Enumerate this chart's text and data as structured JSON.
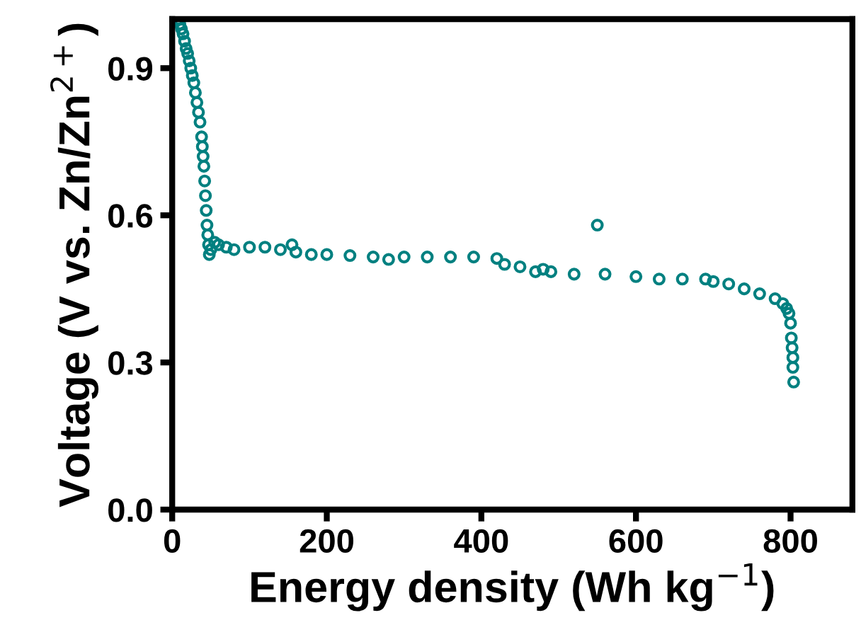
{
  "chart_data": {
    "type": "scatter",
    "xlabel": "Energy density (Wh kg$^{−1}$)",
    "ylabel": "Voltage (V vs. Zn/Zn$^{2+}$)",
    "xlim": [
      0,
      880
    ],
    "ylim": [
      0,
      1.0
    ],
    "xticks": [
      0,
      200,
      400,
      600,
      800
    ],
    "yticks": [
      {
        "value": 0,
        "label": "0.0"
      },
      0.3,
      0.6,
      0.9
    ],
    "grid": false,
    "marker": "circle",
    "series": [
      {
        "color": "#008080",
        "x": [
          8,
          10,
          12,
          14,
          16,
          18,
          20,
          22,
          24,
          26,
          28,
          30,
          32,
          34,
          36,
          38,
          39,
          40,
          41,
          42,
          43,
          44,
          45,
          46,
          47,
          48,
          50,
          55,
          60,
          70,
          80,
          100,
          120,
          140,
          155,
          160,
          180,
          200,
          230,
          260,
          280,
          300,
          330,
          360,
          390,
          420,
          430,
          450,
          470,
          480,
          490,
          520,
          550,
          560,
          600,
          630,
          660,
          690,
          700,
          720,
          740,
          760,
          780,
          790,
          795,
          798,
          800,
          801,
          802,
          803,
          803,
          804
        ],
        "values": [
          1.0,
          0.99,
          0.98,
          0.97,
          0.955,
          0.94,
          0.93,
          0.915,
          0.9,
          0.885,
          0.87,
          0.85,
          0.83,
          0.81,
          0.79,
          0.76,
          0.74,
          0.72,
          0.7,
          0.67,
          0.64,
          0.61,
          0.58,
          0.56,
          0.54,
          0.52,
          0.53,
          0.545,
          0.54,
          0.535,
          0.53,
          0.535,
          0.535,
          0.53,
          0.54,
          0.525,
          0.52,
          0.52,
          0.518,
          0.515,
          0.51,
          0.515,
          0.515,
          0.515,
          0.515,
          0.512,
          0.5,
          0.495,
          0.485,
          0.49,
          0.485,
          0.48,
          0.58,
          0.48,
          0.475,
          0.47,
          0.47,
          0.47,
          0.465,
          0.46,
          0.45,
          0.44,
          0.43,
          0.42,
          0.41,
          0.4,
          0.38,
          0.35,
          0.33,
          0.31,
          0.29,
          0.26
        ]
      }
    ]
  }
}
